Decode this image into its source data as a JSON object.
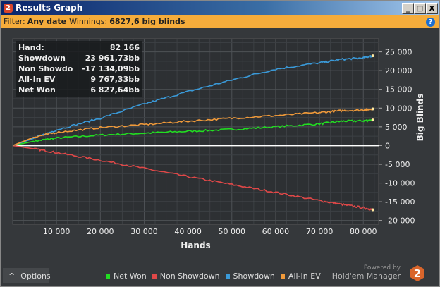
{
  "window": {
    "title": "Results Graph",
    "logo": "2",
    "minimize": "_",
    "maximize": "□",
    "close": "X"
  },
  "filter": {
    "label": "Filter:",
    "date": "Any date",
    "winnings_label": "Winnings:",
    "winnings": "6827,6 big blinds",
    "help": "?"
  },
  "tooltip": [
    {
      "k": "Hand:",
      "v": "82 166"
    },
    {
      "k": "Showdown",
      "v": "23 961,73bb"
    },
    {
      "k": "Non Showdown",
      "v": "-17 134,09bb"
    },
    {
      "k": "All-In EV",
      "v": "9 767,33bb"
    },
    {
      "k": "Net Won",
      "v": "6 827,64bb"
    }
  ],
  "options_label": "Options",
  "brand": {
    "powered": "Powered by",
    "name": "Hold'em Manager",
    "logo": "2"
  },
  "chart_data": {
    "type": "line",
    "xlabel": "Hands",
    "ylabel": "Big Blinds",
    "xlim": [
      0,
      83500
    ],
    "ylim": [
      -21000,
      28500
    ],
    "xticks": [
      10000,
      20000,
      30000,
      40000,
      50000,
      60000,
      70000,
      80000
    ],
    "xtick_labels": [
      "10 000",
      "20 000",
      "30 000",
      "40 000",
      "50 000",
      "60 000",
      "70 000",
      "80 000"
    ],
    "yticks": [
      25000,
      20000,
      15000,
      10000,
      5000,
      0,
      -5000,
      -10000,
      -15000,
      -20000
    ],
    "ytick_labels": [
      "25 000",
      "20 000",
      "15 000",
      "10 000",
      "5 000",
      "0",
      "-5 000",
      "-10 000",
      "-15 000",
      "-20 000"
    ],
    "grid": true,
    "legend": "bottom",
    "x": [
      0,
      5000,
      10000,
      20000,
      30000,
      40000,
      50000,
      60000,
      70000,
      75000,
      80000,
      82166
    ],
    "series": [
      {
        "name": "Net Won",
        "color": "#22dd22",
        "values": [
          0,
          1200,
          2000,
          2800,
          3300,
          3800,
          4300,
          5000,
          5800,
          6500,
          6600,
          6828
        ]
      },
      {
        "name": "Non Showdown",
        "color": "#e04848",
        "values": [
          0,
          -900,
          -1900,
          -3900,
          -6100,
          -8300,
          -10400,
          -12500,
          -14700,
          -15700,
          -16600,
          -17134
        ]
      },
      {
        "name": "Showdown",
        "color": "#3a9ad9",
        "values": [
          0,
          2000,
          4200,
          7300,
          11100,
          14400,
          17500,
          20400,
          22100,
          23000,
          23400,
          23962
        ]
      },
      {
        "name": "All-In EV",
        "color": "#f09a3a",
        "values": [
          0,
          2300,
          3500,
          4800,
          5600,
          6500,
          7300,
          8000,
          8800,
          9300,
          9500,
          9767
        ]
      }
    ]
  }
}
